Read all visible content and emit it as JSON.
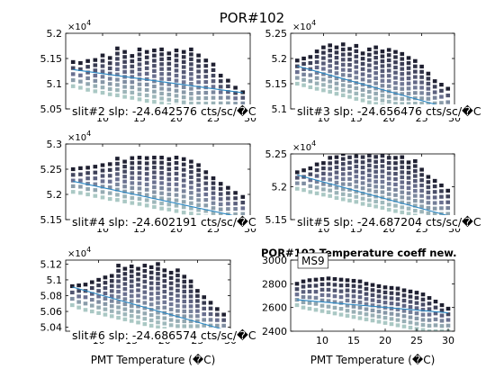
{
  "suptitle": "POR#102",
  "colors": {
    "bar_dark": "#1e1f30",
    "bar_mid": "#6a7090",
    "bar_light": "#aac8c4",
    "fit_line": "#2a88c4",
    "axis": "#000000"
  },
  "chart_data": [
    {
      "type": "scatter",
      "panel": "slit2",
      "caption": "slit#2 slp: -24.642576 cts/sc/�C",
      "exponent": "×10^4",
      "xlim": [
        5,
        30
      ],
      "ylim": [
        5.05,
        5.2
      ],
      "xticks": [
        10,
        15,
        20,
        25,
        30
      ],
      "xtick_labels": [
        "10",
        "15",
        "20",
        "25",
        "30"
      ],
      "yticks": [
        5.05,
        5.1,
        5.15,
        5.2
      ],
      "ytick_labels": [
        "5.05",
        "5.1",
        "5.15",
        "5.2"
      ],
      "x": [
        6.0,
        7.0,
        8.0,
        9.0,
        10.0,
        11.0,
        12.0,
        13.0,
        14.0,
        15.0,
        16.0,
        17.0,
        18.0,
        19.0,
        20.0,
        21.0,
        22.0,
        23.0,
        24.0,
        25.0,
        26.0,
        27.0,
        28.0,
        29.0
      ],
      "y_top": [
        5.143,
        5.141,
        5.145,
        5.147,
        5.156,
        5.151,
        5.17,
        5.163,
        5.155,
        5.168,
        5.163,
        5.166,
        5.168,
        5.16,
        5.166,
        5.163,
        5.168,
        5.156,
        5.146,
        5.138,
        5.116,
        5.106,
        5.092,
        5.083
      ],
      "y_bottom": [
        5.095,
        5.092,
        5.088,
        5.085,
        5.082,
        5.079,
        5.077,
        5.074,
        5.072,
        5.069,
        5.066,
        5.064,
        5.061,
        5.058,
        5.056,
        5.053,
        5.051,
        5.05,
        5.05,
        5.05,
        5.05,
        5.05,
        5.05,
        5.05
      ],
      "fit": {
        "x": [
          6,
          29
        ],
        "y": [
          5.128,
          5.082
        ]
      }
    },
    {
      "type": "scatter",
      "panel": "slit3",
      "caption": "slit#3 slp: -24.656476 cts/sc/�C",
      "exponent": "×10^4",
      "xlim": [
        5,
        30
      ],
      "ylim": [
        5.1,
        5.25
      ],
      "xticks": [
        10,
        15,
        20,
        25,
        30
      ],
      "xtick_labels": [
        "10",
        "15",
        "20",
        "25",
        "30"
      ],
      "yticks": [
        5.1,
        5.15,
        5.2,
        5.25
      ],
      "ytick_labels": [
        "5.1",
        "5.15",
        "5.2",
        "5.25"
      ],
      "x": [
        6.0,
        7.0,
        8.0,
        9.0,
        10.0,
        11.0,
        12.0,
        13.0,
        14.0,
        15.0,
        16.0,
        17.0,
        18.0,
        19.0,
        20.0,
        21.0,
        22.0,
        23.0,
        24.0,
        25.0,
        26.0,
        27.0,
        28.0,
        29.0
      ],
      "y_top": [
        5.196,
        5.2,
        5.203,
        5.214,
        5.222,
        5.226,
        5.222,
        5.228,
        5.219,
        5.225,
        5.21,
        5.218,
        5.222,
        5.214,
        5.217,
        5.213,
        5.209,
        5.201,
        5.195,
        5.184,
        5.17,
        5.155,
        5.148,
        5.14
      ],
      "y_bottom": [
        5.15,
        5.147,
        5.143,
        5.14,
        5.137,
        5.134,
        5.13,
        5.127,
        5.124,
        5.12,
        5.117,
        5.113,
        5.11,
        5.107,
        5.104,
        5.1,
        5.1,
        5.1,
        5.1,
        5.1,
        5.1,
        5.1,
        5.1,
        5.1
      ],
      "fit": {
        "x": [
          6,
          29
        ],
        "y": [
          5.185,
          5.102
        ]
      }
    },
    {
      "type": "scatter",
      "panel": "slit4",
      "caption": "slit#4 slp: -24.602191 cts/sc/�C",
      "exponent": "×10^4",
      "xlim": [
        5,
        30
      ],
      "ylim": [
        5.15,
        5.3
      ],
      "xticks": [
        10,
        15,
        20,
        25,
        30
      ],
      "xtick_labels": [
        "10",
        "15",
        "20",
        "25",
        "30"
      ],
      "yticks": [
        5.15,
        5.2,
        5.25,
        5.3
      ],
      "ytick_labels": [
        "5.15",
        "5.2",
        "5.25",
        "5.3"
      ],
      "x": [
        6.0,
        7.0,
        8.0,
        9.0,
        10.0,
        11.0,
        12.0,
        13.0,
        14.0,
        15.0,
        16.0,
        17.0,
        18.0,
        19.0,
        20.0,
        21.0,
        22.0,
        23.0,
        24.0,
        25.0,
        26.0,
        27.0,
        28.0,
        29.0
      ],
      "y_top": [
        5.25,
        5.252,
        5.253,
        5.255,
        5.258,
        5.26,
        5.271,
        5.265,
        5.272,
        5.273,
        5.272,
        5.273,
        5.273,
        5.27,
        5.273,
        5.27,
        5.265,
        5.258,
        5.244,
        5.232,
        5.221,
        5.213,
        5.203,
        5.195
      ],
      "y_bottom": [
        5.205,
        5.203,
        5.2,
        5.197,
        5.194,
        5.191,
        5.189,
        5.186,
        5.183,
        5.181,
        5.178,
        5.175,
        5.172,
        5.17,
        5.167,
        5.164,
        5.162,
        5.159,
        5.156,
        5.153,
        5.15,
        5.15,
        5.15,
        5.15
      ],
      "fit": {
        "x": [
          6,
          29
        ],
        "y": [
          5.226,
          5.154
        ]
      }
    },
    {
      "type": "scatter",
      "panel": "slit5",
      "caption": "slit#5 slp: -24.687204 cts/sc/�C",
      "exponent": "×10^4",
      "xlim": [
        5,
        30
      ],
      "ylim": [
        5.15,
        5.25
      ],
      "xticks": [
        10,
        15,
        20,
        25,
        30
      ],
      "xtick_labels": [
        "10",
        "15",
        "20",
        "25",
        "30"
      ],
      "yticks": [
        5.15,
        5.2,
        5.25
      ],
      "ytick_labels": [
        "5.15",
        "5.2",
        "5.25"
      ],
      "x": [
        6.0,
        7.0,
        8.0,
        9.0,
        10.0,
        11.0,
        12.0,
        13.0,
        14.0,
        15.0,
        16.0,
        17.0,
        18.0,
        19.0,
        20.0,
        21.0,
        22.0,
        23.0,
        24.0,
        25.0,
        26.0,
        27.0,
        28.0,
        29.0
      ],
      "y_top": [
        5.222,
        5.225,
        5.228,
        5.234,
        5.236,
        5.244,
        5.245,
        5.25,
        5.253,
        5.254,
        5.253,
        5.255,
        5.253,
        5.255,
        5.252,
        5.244,
        5.245,
        5.237,
        5.239,
        5.226,
        5.215,
        5.209,
        5.202,
        5.194
      ],
      "y_bottom": [
        5.197,
        5.195,
        5.192,
        5.19,
        5.188,
        5.186,
        5.183,
        5.181,
        5.179,
        5.177,
        5.174,
        5.172,
        5.17,
        5.168,
        5.165,
        5.163,
        5.161,
        5.159,
        5.156,
        5.154,
        5.152,
        5.15,
        5.15,
        5.15
      ],
      "fit": {
        "x": [
          6,
          29
        ],
        "y": [
          5.218,
          5.156
        ]
      }
    },
    {
      "type": "scatter",
      "panel": "slit6",
      "caption": "slit#6 slp: -24.686574 cts/sc/�C",
      "exponent": "×10^4",
      "xlim": [
        5,
        30
      ],
      "ylim": [
        5.035,
        5.125
      ],
      "xticks": [
        10,
        15,
        20,
        25,
        30
      ],
      "xtick_labels": [
        "10",
        "15",
        "20",
        "25",
        "30"
      ],
      "yticks": [
        5.04,
        5.06,
        5.08,
        5.1,
        5.12
      ],
      "ytick_labels": [
        "5.04",
        "5.06",
        "5.08",
        "5.1",
        "5.12"
      ],
      "x": [
        6.0,
        7.0,
        8.0,
        9.0,
        10.0,
        11.0,
        12.0,
        13.0,
        14.0,
        15.0,
        16.0,
        17.0,
        18.0,
        19.0,
        20.0,
        21.0,
        22.0,
        23.0,
        24.0,
        25.0,
        26.0,
        27.0,
        28.0,
        29.0
      ],
      "y_top": [
        5.092,
        5.093,
        5.094,
        5.097,
        5.1,
        5.103,
        5.105,
        5.118,
        5.114,
        5.117,
        5.114,
        5.118,
        5.116,
        5.12,
        5.112,
        5.109,
        5.112,
        5.104,
        5.098,
        5.086,
        5.078,
        5.071,
        5.063,
        5.056
      ],
      "y_bottom": [
        5.068,
        5.065,
        5.062,
        5.06,
        5.058,
        5.056,
        5.054,
        5.052,
        5.05,
        5.048,
        5.046,
        5.044,
        5.042,
        5.04,
        5.038,
        5.036,
        5.035,
        5.035,
        5.035,
        5.035,
        5.035,
        5.035,
        5.035,
        5.035
      ],
      "fit": {
        "x": [
          6,
          29
        ],
        "y": [
          5.091,
          5.037
        ]
      }
    },
    {
      "type": "scatter",
      "panel": "ms9",
      "title": "POR#102 Temperature coeff new.",
      "caption": "MS9",
      "xlabel": "PMT Temperature (�C)",
      "exponent": "",
      "xlim": [
        5,
        31
      ],
      "ylim": [
        2400,
        3000
      ],
      "xticks": [
        10,
        15,
        20,
        25,
        30
      ],
      "xtick_labels": [
        "10",
        "15",
        "20",
        "25",
        "30"
      ],
      "yticks": [
        2400,
        2600,
        2800,
        3000
      ],
      "ytick_labels": [
        "2400",
        "2600",
        "2800",
        "3000"
      ],
      "x": [
        6.0,
        7.0,
        8.0,
        9.0,
        10.0,
        11.0,
        12.0,
        13.0,
        14.0,
        15.0,
        16.0,
        17.0,
        18.0,
        19.0,
        20.0,
        21.0,
        22.0,
        23.0,
        24.0,
        25.0,
        26.0,
        27.0,
        28.0,
        29.0,
        30.0
      ],
      "y_top": [
        2800,
        2820,
        2830,
        2835,
        2840,
        2845,
        2840,
        2835,
        2830,
        2825,
        2820,
        2800,
        2790,
        2780,
        2770,
        2765,
        2760,
        2745,
        2735,
        2725,
        2710,
        2680,
        2650,
        2620,
        2590
      ],
      "y_bottom": [
        2620,
        2600,
        2590,
        2580,
        2570,
        2560,
        2550,
        2540,
        2530,
        2520,
        2510,
        2500,
        2490,
        2480,
        2470,
        2460,
        2450,
        2440,
        2430,
        2420,
        2410,
        2400,
        2400,
        2400,
        2400
      ],
      "fit": {
        "x": [
          6,
          30
        ],
        "y": [
          2665,
          2555
        ]
      }
    }
  ],
  "xlabel_left": "PMT Temperature (�C)"
}
